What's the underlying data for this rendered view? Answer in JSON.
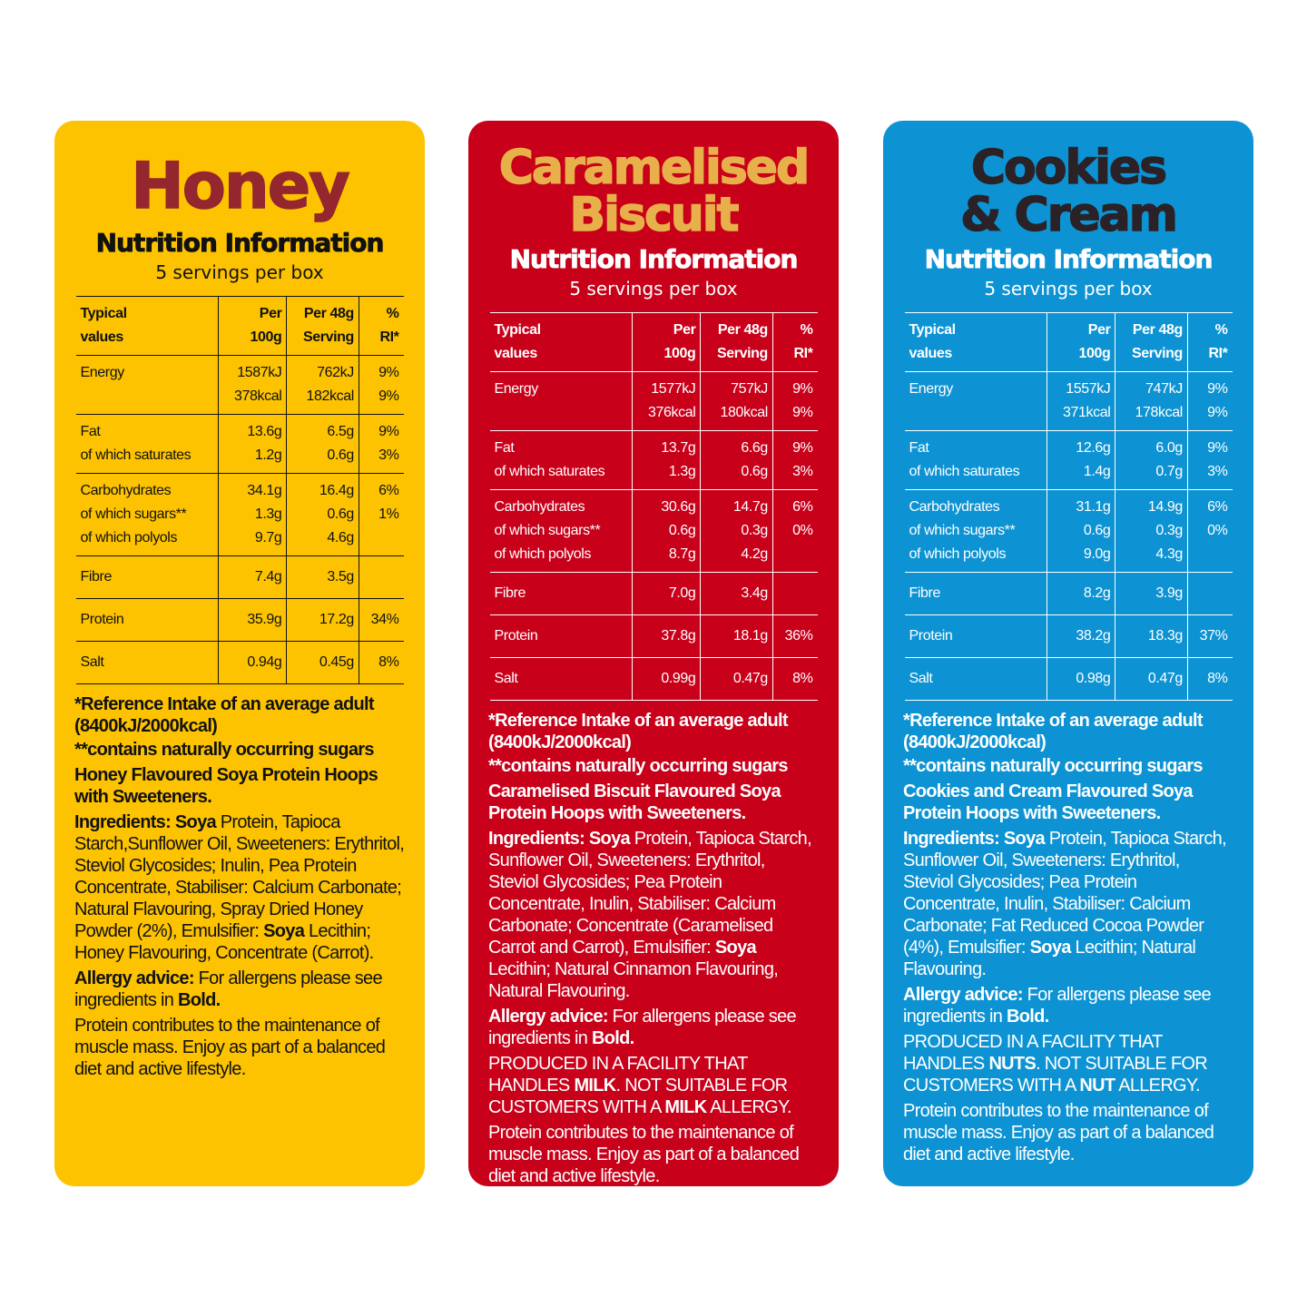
{
  "colors": {
    "honey_bg": "#FDC300",
    "honey_title": "#93262E",
    "caramel_bg": "#C8001A",
    "caramel_title": "#E8B04A",
    "cookies_bg": "#0D93D3",
    "cookies_title": "#2A2226"
  },
  "headers": [
    "Typical\nvalues",
    "Per\n100g",
    "Per 48g\nServing",
    "%\nRI*"
  ],
  "cards": [
    {
      "id": "honey",
      "title": [
        "Honey"
      ],
      "nutrition_title": "Nutrition Information",
      "servings": "5 servings per box",
      "groups": [
        [
          [
            "Energy",
            "1587kJ",
            "762kJ",
            "9%"
          ],
          [
            "",
            "378kcal",
            "182kcal",
            "9%"
          ]
        ],
        [
          [
            "Fat",
            "13.6g",
            "6.5g",
            "9%"
          ],
          [
            "of which saturates",
            "1.2g",
            "0.6g",
            "3%"
          ]
        ],
        [
          [
            "Carbohydrates",
            "34.1g",
            "16.4g",
            "6%"
          ],
          [
            "of which sugars**",
            "1.3g",
            "0.6g",
            "1%"
          ],
          [
            "of which polyols",
            "9.7g",
            "4.6g",
            ""
          ]
        ],
        [
          [
            "Fibre",
            "7.4g",
            "3.5g",
            ""
          ]
        ],
        [
          [
            "Protein",
            "35.9g",
            "17.2g",
            "34%"
          ]
        ],
        [
          [
            "Salt",
            "0.94g",
            "0.45g",
            "8%"
          ]
        ]
      ],
      "paragraphs": [
        [
          {
            "t": "*Reference Intake of an average adult (8400kJ/2000kcal)",
            "b": true
          }
        ],
        [
          {
            "t": "**contains naturally occurring sugars",
            "b": true
          }
        ],
        [
          {
            "t": "Honey Flavoured Soya Protein Hoops with Sweeteners.",
            "b": true
          }
        ],
        [
          {
            "t": "Ingredients: Soya",
            "b": true
          },
          {
            "t": " Protein, Tapioca Starch,Sunflower Oil, Sweeteners: Erythritol, Steviol Glycosides; Inulin, Pea Protein Concentrate, Stabiliser: Calcium Carbonate; Natural Flavouring, Spray Dried Honey Powder (2%), Emulsifier: "
          },
          {
            "t": "Soya",
            "b": true
          },
          {
            "t": " Lecithin; Honey Flavouring, Concentrate (Carrot)."
          }
        ],
        [
          {
            "t": "Allergy advice:",
            "b": true
          },
          {
            "t": " For allergens please see ingredients in "
          },
          {
            "t": "Bold.",
            "b": true
          }
        ],
        [
          {
            "t": "Protein contributes to the maintenance of muscle mass. Enjoy as part of a balanced diet and active lifestyle."
          }
        ]
      ]
    },
    {
      "id": "caramel",
      "title": [
        "Caramelised",
        "Biscuit"
      ],
      "nutrition_title": "Nutrition Information",
      "servings": "5 servings per box",
      "groups": [
        [
          [
            "Energy",
            "1577kJ",
            "757kJ",
            "9%"
          ],
          [
            "",
            "376kcal",
            "180kcal",
            "9%"
          ]
        ],
        [
          [
            "Fat",
            "13.7g",
            "6.6g",
            "9%"
          ],
          [
            "of which saturates",
            "1.3g",
            "0.6g",
            "3%"
          ]
        ],
        [
          [
            "Carbohydrates",
            "30.6g",
            "14.7g",
            "6%"
          ],
          [
            "of which sugars**",
            "0.6g",
            "0.3g",
            "0%"
          ],
          [
            "of which polyols",
            "8.7g",
            "4.2g",
            ""
          ]
        ],
        [
          [
            "Fibre",
            "7.0g",
            "3.4g",
            ""
          ]
        ],
        [
          [
            "Protein",
            "37.8g",
            "18.1g",
            "36%"
          ]
        ],
        [
          [
            "Salt",
            "0.99g",
            "0.47g",
            "8%"
          ]
        ]
      ],
      "paragraphs": [
        [
          {
            "t": "*Reference Intake of an average adult (8400kJ/2000kcal)",
            "b": true
          }
        ],
        [
          {
            "t": "**contains naturally occurring sugars",
            "b": true
          }
        ],
        [
          {
            "t": "Caramelised Biscuit Flavoured Soya Protein Hoops with Sweeteners.",
            "b": true
          }
        ],
        [
          {
            "t": "Ingredients: Soya",
            "b": true
          },
          {
            "t": " Protein, Tapioca Starch, Sunflower Oil, Sweeteners: Erythritol, Steviol Glycosides; Pea Protein Concentrate, Inulin, Stabiliser: Calcium Carbonate; Concentrate (Caramelised Carrot and Carrot), Emulsifier: "
          },
          {
            "t": "Soya",
            "b": true
          },
          {
            "t": " Lecithin; Natural Cinnamon Flavouring, Natural Flavouring."
          }
        ],
        [
          {
            "t": "Allergy advice:",
            "b": true
          },
          {
            "t": " For allergens please see ingredients in "
          },
          {
            "t": "Bold.",
            "b": true
          }
        ],
        [
          {
            "t": "PRODUCED IN A FACILITY THAT HANDLES "
          },
          {
            "t": "MILK",
            "b": true
          },
          {
            "t": ". NOT SUITABLE FOR CUSTOMERS WITH A "
          },
          {
            "t": "MILK",
            "b": true
          },
          {
            "t": " ALLERGY."
          }
        ],
        [
          {
            "t": "Protein contributes to the maintenance of muscle mass. Enjoy as part of a balanced diet and active lifestyle."
          }
        ]
      ]
    },
    {
      "id": "cookies",
      "title": [
        "Cookies",
        "& Cream"
      ],
      "nutrition_title": "Nutrition Information",
      "servings": "5 servings per box",
      "groups": [
        [
          [
            "Energy",
            "1557kJ",
            "747kJ",
            "9%"
          ],
          [
            "",
            "371kcal",
            "178kcal",
            "9%"
          ]
        ],
        [
          [
            "Fat",
            "12.6g",
            "6.0g",
            "9%"
          ],
          [
            "of which saturates",
            "1.4g",
            "0.7g",
            "3%"
          ]
        ],
        [
          [
            "Carbohydrates",
            "31.1g",
            "14.9g",
            "6%"
          ],
          [
            "of which sugars**",
            "0.6g",
            "0.3g",
            "0%"
          ],
          [
            "of which polyols",
            "9.0g",
            "4.3g",
            ""
          ]
        ],
        [
          [
            "Fibre",
            "8.2g",
            "3.9g",
            ""
          ]
        ],
        [
          [
            "Protein",
            "38.2g",
            "18.3g",
            "37%"
          ]
        ],
        [
          [
            "Salt",
            "0.98g",
            "0.47g",
            "8%"
          ]
        ]
      ],
      "paragraphs": [
        [
          {
            "t": "*Reference Intake of an average adult (8400kJ/2000kcal)",
            "b": true
          }
        ],
        [
          {
            "t": "**contains naturally occurring sugars",
            "b": true
          }
        ],
        [
          {
            "t": "Cookies and Cream Flavoured Soya Protein Hoops with Sweeteners.",
            "b": true
          }
        ],
        [
          {
            "t": "Ingredients: Soya",
            "b": true
          },
          {
            "t": " Protein, Tapioca Starch, Sunflower Oil, Sweeteners: Erythritol, Steviol Glycosides; Pea Protein Concentrate, Inulin, Stabiliser: Calcium Carbonate; Fat Reduced Cocoa Powder (4%), Emulsifier: "
          },
          {
            "t": "Soya",
            "b": true
          },
          {
            "t": " Lecithin; Natural Flavouring."
          }
        ],
        [
          {
            "t": "Allergy advice:",
            "b": true
          },
          {
            "t": " For allergens please see ingredients in "
          },
          {
            "t": "Bold.",
            "b": true
          }
        ],
        [
          {
            "t": "PRODUCED IN A FACILITY THAT HANDLES "
          },
          {
            "t": "NUTS",
            "b": true
          },
          {
            "t": ". NOT SUITABLE FOR CUSTOMERS WITH A "
          },
          {
            "t": "NUT",
            "b": true
          },
          {
            "t": " ALLERGY."
          }
        ],
        [
          {
            "t": "Protein contributes to the maintenance of muscle mass. Enjoy as part of a balanced diet and active lifestyle."
          }
        ]
      ]
    }
  ]
}
